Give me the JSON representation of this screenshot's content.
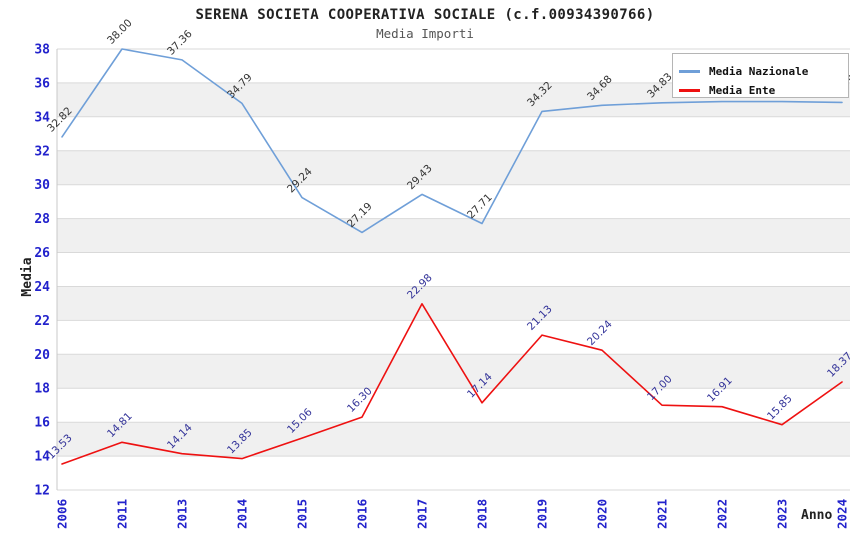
{
  "chart": {
    "title": "SERENA SOCIETA COOPERATIVA SOCIALE (c.f.00934390766)",
    "subtitle": "Media Importi",
    "y_axis_title": "Media",
    "x_axis_title": "Anno"
  },
  "legend": {
    "items": [
      {
        "label": "Media Nazionale",
        "color": "#6f9fd8"
      },
      {
        "label": "Media Ente",
        "color": "#ee1111"
      }
    ]
  },
  "colors": {
    "tick_label": "#2222cc",
    "band_fill": "#f0f0f0",
    "gridline": "#d9d9d9",
    "plot_border": "#c9c9c9",
    "nazionale_line": "#6f9fd8",
    "ente_line": "#ee1111",
    "nazionale_label": "#333333",
    "ente_label": "#333399"
  },
  "chart_data": {
    "type": "line",
    "title": "SERENA SOCIETA COOPERATIVA SOCIALE (c.f.00934390766)",
    "subtitle": "Media Importi",
    "xlabel": "Anno",
    "ylabel": "Media",
    "categories": [
      "2006",
      "2011",
      "2013",
      "2014",
      "2015",
      "2016",
      "2017",
      "2018",
      "2019",
      "2020",
      "2021",
      "2022",
      "2023",
      "2024"
    ],
    "ylim": [
      12,
      38
    ],
    "ytick_step": 2,
    "grid": true,
    "banded_background": true,
    "legend_position": "top-right",
    "series": [
      {
        "name": "Media Nazionale",
        "color": "#6f9fd8",
        "label_color": "#333333",
        "values": [
          32.82,
          38.0,
          37.36,
          34.79,
          29.24,
          27.19,
          29.43,
          27.71,
          34.32,
          34.68,
          34.83,
          34.9,
          34.9,
          34.85
        ],
        "labels": [
          "32.82",
          "38.00",
          "37.36",
          "34.79",
          "29.24",
          "27.19",
          "29.43",
          "27.71",
          "34.32",
          "34.68",
          "34.83",
          "",
          "",
          "34.85"
        ]
      },
      {
        "name": "Media Ente",
        "color": "#ee1111",
        "label_color": "#333399",
        "values": [
          13.53,
          14.81,
          14.14,
          13.85,
          15.06,
          16.3,
          22.98,
          17.14,
          21.13,
          20.24,
          17.0,
          16.91,
          15.85,
          18.37
        ],
        "labels": [
          "13.53",
          "14.81",
          "14.14",
          "13.85",
          "15.06",
          "16.30",
          "22.98",
          "17.14",
          "21.13",
          "20.24",
          "17.00",
          "16.91",
          "15.85",
          "18.37"
        ]
      }
    ]
  }
}
